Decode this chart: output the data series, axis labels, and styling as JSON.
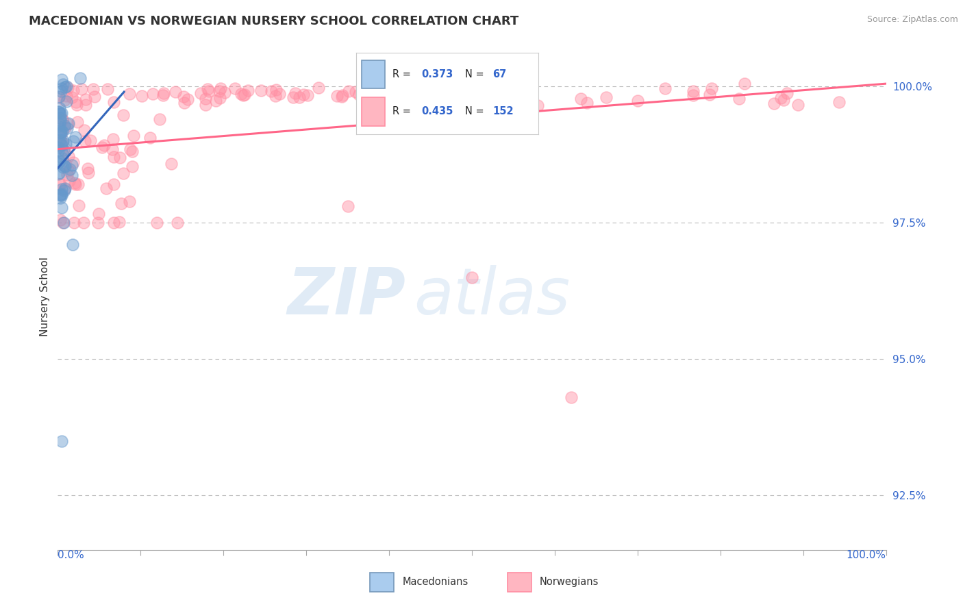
{
  "title": "MACEDONIAN VS NORWEGIAN NURSERY SCHOOL CORRELATION CHART",
  "source_text": "Source: ZipAtlas.com",
  "ylabel": "Nursery School",
  "yticks": [
    92.5,
    95.0,
    97.5,
    100.0
  ],
  "ytick_labels": [
    "92.5%",
    "95.0%",
    "97.5%",
    "100.0%"
  ],
  "legend_macedonian": {
    "R": 0.373,
    "N": 67,
    "color": "#7EB0D5"
  },
  "legend_norwegian": {
    "R": 0.435,
    "N": 152,
    "color": "#FFB6C1"
  },
  "macedonian_color": "#6699CC",
  "norwegian_color": "#FF8FA3",
  "trendline_macedonian_color": "#3366BB",
  "trendline_norwegian_color": "#FF6688",
  "watermark_line1": "ZIP",
  "watermark_line2": "atlas",
  "background_color": "#FFFFFF",
  "xlim": [
    0,
    100
  ],
  "ylim": [
    91.5,
    100.8
  ],
  "xtick_positions": [
    0,
    10,
    20,
    30,
    40,
    50,
    60,
    70,
    80,
    90,
    100
  ],
  "title_fontsize": 13,
  "source_fontsize": 9,
  "ytick_fontsize": 11,
  "ylabel_fontsize": 11
}
